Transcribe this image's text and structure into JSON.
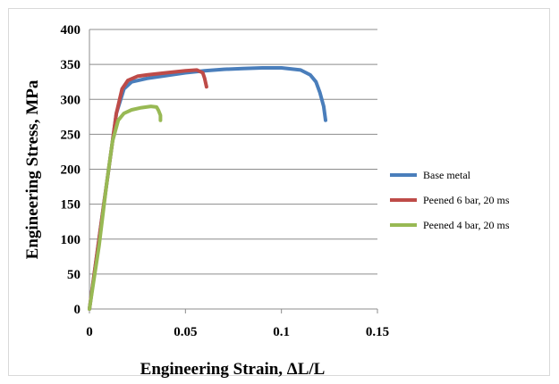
{
  "chart_data": {
    "type": "line",
    "title": "",
    "xlabel": "Engineering Strain, ΔL/L",
    "ylabel": "Engineering Stress, MPa",
    "xlim": [
      0,
      0.15
    ],
    "ylim": [
      0,
      400
    ],
    "x_ticks": [
      "0",
      "0.05",
      "0.1",
      "0.15"
    ],
    "y_ticks": [
      "0",
      "50",
      "100",
      "150",
      "200",
      "250",
      "300",
      "350",
      "400"
    ],
    "grid": "horizontal",
    "legend_position": "right",
    "series": [
      {
        "name": "Base metal",
        "color": "#4a7ebb",
        "points": [
          [
            0,
            0
          ],
          [
            0.005,
            100
          ],
          [
            0.01,
            200
          ],
          [
            0.014,
            280
          ],
          [
            0.018,
            315
          ],
          [
            0.022,
            325
          ],
          [
            0.03,
            330
          ],
          [
            0.04,
            334
          ],
          [
            0.05,
            338
          ],
          [
            0.06,
            341
          ],
          [
            0.07,
            343
          ],
          [
            0.08,
            344
          ],
          [
            0.09,
            345
          ],
          [
            0.1,
            345
          ],
          [
            0.11,
            342
          ],
          [
            0.115,
            335
          ],
          [
            0.118,
            325
          ],
          [
            0.12,
            310
          ],
          [
            0.122,
            290
          ],
          [
            0.123,
            270
          ]
        ]
      },
      {
        "name": "Peened 6 bar, 20 ms",
        "color": "#be4b48",
        "points": [
          [
            0,
            0
          ],
          [
            0.005,
            100
          ],
          [
            0.01,
            200
          ],
          [
            0.014,
            280
          ],
          [
            0.017,
            315
          ],
          [
            0.02,
            327
          ],
          [
            0.025,
            333
          ],
          [
            0.03,
            335
          ],
          [
            0.04,
            338
          ],
          [
            0.05,
            341
          ],
          [
            0.056,
            342
          ],
          [
            0.059,
            338
          ],
          [
            0.06,
            330
          ],
          [
            0.061,
            318
          ]
        ]
      },
      {
        "name": "Peened 4 bar, 20 ms",
        "color": "#98b954",
        "points": [
          [
            0,
            0
          ],
          [
            0.005,
            90
          ],
          [
            0.009,
            180
          ],
          [
            0.012,
            240
          ],
          [
            0.015,
            270
          ],
          [
            0.018,
            280
          ],
          [
            0.022,
            285
          ],
          [
            0.027,
            288
          ],
          [
            0.032,
            290
          ],
          [
            0.035,
            289
          ],
          [
            0.036,
            284
          ],
          [
            0.037,
            277
          ],
          [
            0.037,
            270
          ]
        ]
      }
    ]
  }
}
